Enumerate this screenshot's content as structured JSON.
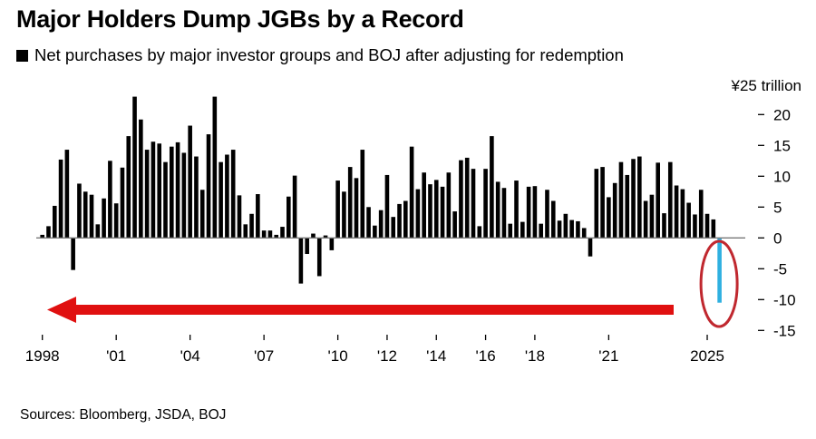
{
  "chart_data": {
    "type": "bar",
    "title": "Major Holders Dump JGBs by a Record",
    "subtitle": "Net purchases by major investor groups and BOJ after adjusting for redemption",
    "legend_marker": "square",
    "unit_label": "¥25 trillion",
    "frequency": "quarterly",
    "start_period": "1998Q1",
    "ylim": [
      -15,
      25
    ],
    "y_ticks": [
      20,
      15,
      10,
      5,
      0,
      -5,
      -10,
      -15
    ],
    "x_ticks": [
      {
        "label": "1998",
        "year": 1998
      },
      {
        "label": "'01",
        "year": 2001
      },
      {
        "label": "'04",
        "year": 2004
      },
      {
        "label": "'07",
        "year": 2007
      },
      {
        "label": "'10",
        "year": 2010
      },
      {
        "label": "'12",
        "year": 2012
      },
      {
        "label": "'14",
        "year": 2014
      },
      {
        "label": "'16",
        "year": 2016
      },
      {
        "label": "'18",
        "year": 2018
      },
      {
        "label": "'21",
        "year": 2021
      },
      {
        "label": "2025",
        "year": 2025
      }
    ],
    "values": [
      0.5,
      1.9,
      5.2,
      12.7,
      14.3,
      -5.2,
      8.8,
      7.5,
      7.0,
      2.2,
      6.4,
      12.5,
      5.6,
      11.4,
      16.5,
      22.9,
      19.2,
      14.3,
      15.6,
      15.3,
      12.3,
      14.8,
      15.5,
      13.8,
      18.2,
      13.2,
      7.8,
      16.8,
      22.9,
      12.3,
      13.5,
      14.3,
      6.9,
      2.2,
      3.9,
      7.1,
      1.2,
      1.2,
      0.5,
      1.8,
      6.7,
      10.1,
      -7.4,
      -2.6,
      0.7,
      -6.2,
      0.4,
      -2.0,
      9.3,
      7.5,
      11.5,
      9.7,
      14.3,
      5.0,
      2.0,
      4.5,
      10.2,
      3.4,
      5.5,
      6.0,
      14.8,
      7.9,
      10.6,
      8.7,
      9.4,
      8.3,
      10.6,
      4.3,
      12.6,
      13.0,
      11.2,
      1.9,
      11.2,
      16.5,
      9.1,
      8.1,
      2.3,
      9.3,
      2.6,
      8.3,
      8.4,
      2.3,
      7.8,
      6.0,
      2.8,
      3.9,
      2.9,
      2.7,
      1.6,
      -3.0,
      11.2,
      11.5,
      6.6,
      8.9,
      12.3,
      10.2,
      12.8,
      13.2,
      6.0,
      7.0,
      12.2,
      4.0,
      12.3,
      8.5,
      7.9,
      5.7,
      3.8,
      7.8,
      3.9,
      3.0,
      -10.5
    ],
    "highlight_last": true,
    "colors": {
      "bars": "#000000",
      "highlight": "#2fb0e0",
      "arrow": "#e01010",
      "ellipse": "#c0282f",
      "zero_line": "#777777"
    },
    "annotations": [
      "red arrow pointing left across full history",
      "red ellipse circling latest bar"
    ],
    "grid": false,
    "source": "Sources: Bloomberg, JSDA, BOJ"
  }
}
